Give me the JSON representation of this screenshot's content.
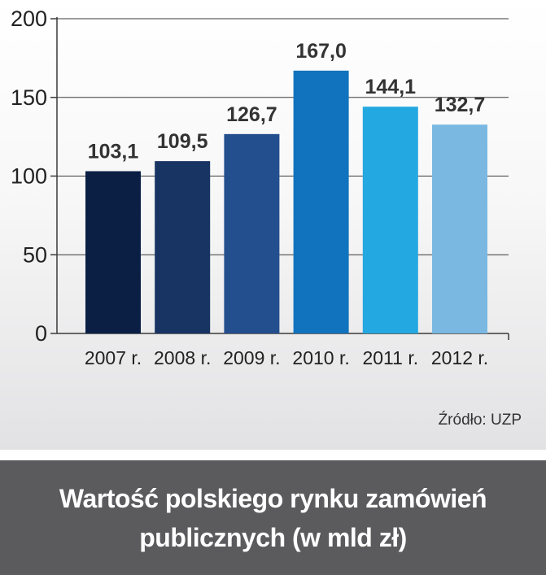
{
  "chart_data": {
    "type": "bar",
    "categories": [
      "2007 r.",
      "2008 r.",
      "2009 r.",
      "2010 r.",
      "2011 r.",
      "2012 r."
    ],
    "values": [
      103.1,
      109.5,
      126.7,
      167.0,
      144.1,
      132.7
    ],
    "value_labels": [
      "103,1",
      "109,5",
      "126,7",
      "167,0",
      "144,1",
      "132,7"
    ],
    "bar_colors": [
      "#0b1f45",
      "#183463",
      "#244f8e",
      "#1173bd",
      "#24a8e1",
      "#7ab8e2"
    ],
    "title_lines": [
      "Wartość polskiego rynku zamówień",
      "publicznych (w mld zł)"
    ],
    "ylim": [
      0,
      200
    ],
    "yticks": [
      0,
      50,
      100,
      150,
      200
    ],
    "grid": true,
    "source": "Źródło: UZP"
  }
}
